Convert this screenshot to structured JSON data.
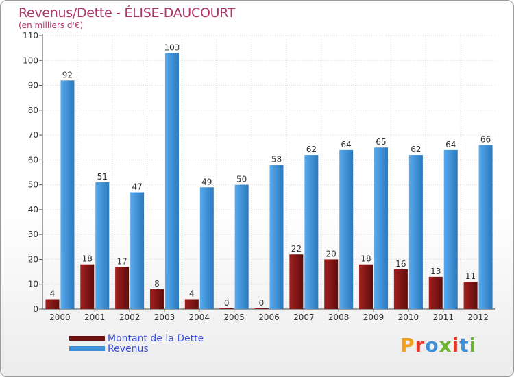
{
  "header": {
    "title": "Revenus/Dette - ÉLISE-DAUCOURT",
    "subtitle": "(en milliers d'€)"
  },
  "legend": {
    "debt_label": "Montant de la Dette",
    "revenue_label": "Revenus"
  },
  "logo": {
    "letters": [
      "P",
      "r",
      "o",
      "x",
      "i",
      "t",
      "i"
    ],
    "colors": [
      "#f0a020",
      "#e0392b",
      "#3c8fd8",
      "#6bb531",
      "#e0392b",
      "#3c8fd8",
      "#6bb531"
    ]
  },
  "colors": {
    "debt": "#7a1414",
    "revenue": "#3a8fd6",
    "title": "#b0366a"
  },
  "chart_data": {
    "type": "bar",
    "title": "Revenus/Dette - ÉLISE-DAUCOURT",
    "subtitle": "(en milliers d'€)",
    "categories": [
      "2000",
      "2001",
      "2002",
      "2003",
      "2004",
      "2005",
      "2006",
      "2007",
      "2008",
      "2009",
      "2010",
      "2011",
      "2012"
    ],
    "series": [
      {
        "name": "Montant de la Dette",
        "values": [
          4,
          18,
          17,
          8,
          4,
          0,
          0,
          22,
          20,
          18,
          16,
          13,
          11
        ]
      },
      {
        "name": "Revenus",
        "values": [
          92,
          51,
          47,
          103,
          49,
          50,
          58,
          62,
          64,
          65,
          62,
          64,
          66
        ]
      }
    ],
    "ylim": [
      0,
      110
    ],
    "yticks": [
      0,
      10,
      20,
      30,
      40,
      50,
      60,
      70,
      80,
      90,
      100,
      110
    ],
    "grid": true,
    "legend_position": "bottom-left"
  }
}
